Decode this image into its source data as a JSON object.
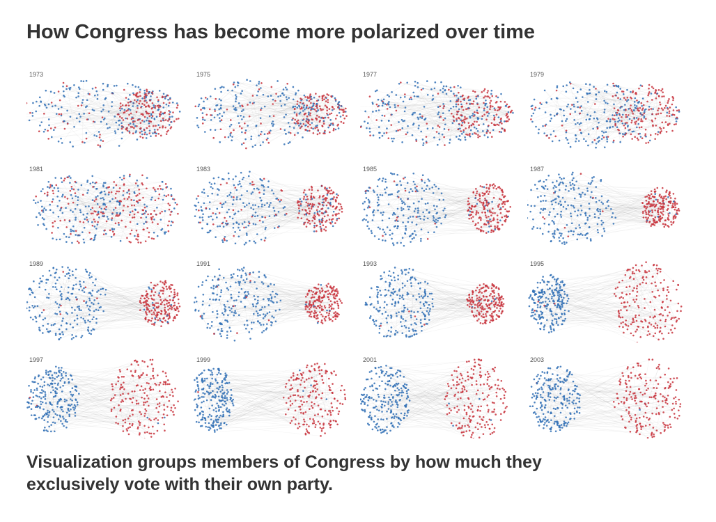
{
  "header": {
    "title": "How Congress has become more polarized over time"
  },
  "panels": [
    {
      "year": "1973"
    },
    {
      "year": "1975"
    },
    {
      "year": "1977"
    },
    {
      "year": "1979"
    },
    {
      "year": "1981"
    },
    {
      "year": "1983"
    },
    {
      "year": "1985"
    },
    {
      "year": "1987"
    },
    {
      "year": "1989"
    },
    {
      "year": "1991"
    },
    {
      "year": "1993"
    },
    {
      "year": "1995"
    },
    {
      "year": "1997"
    },
    {
      "year": "1999"
    },
    {
      "year": "2001"
    },
    {
      "year": "2003"
    }
  ],
  "caption": "Visualization groups members of Congress by how much they exclusively vote with their own party."
}
